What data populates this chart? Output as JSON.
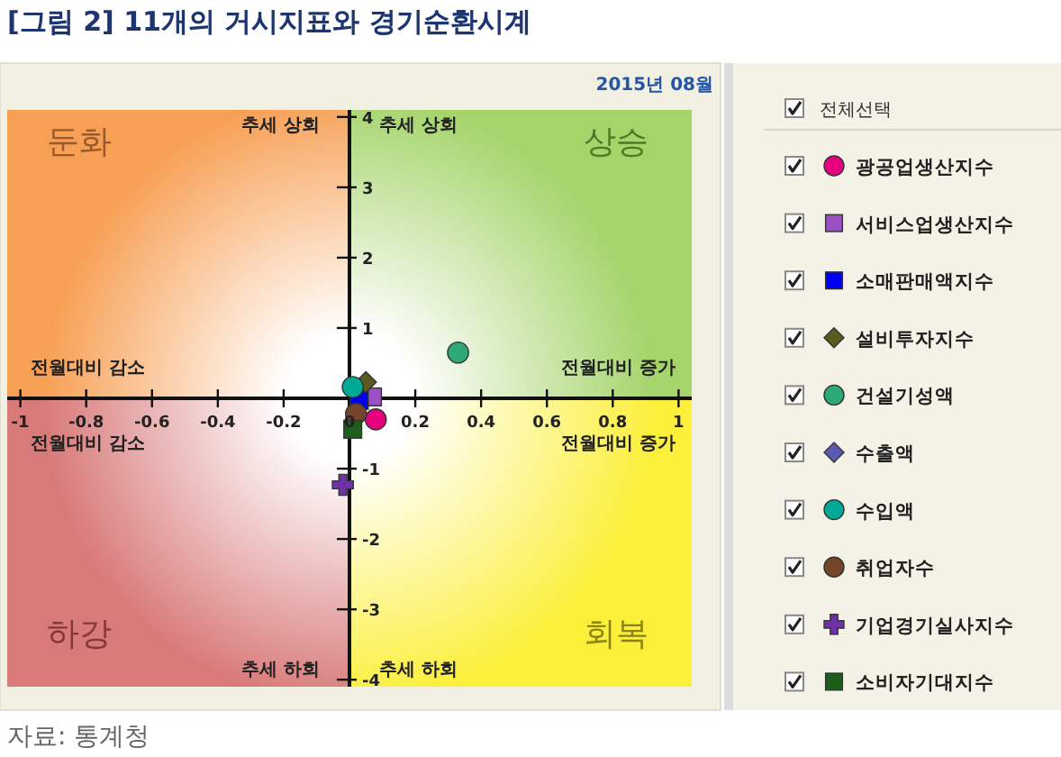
{
  "chart_data": {
    "type": "scatter",
    "title": "[그림 2] 11개의 거시지표와 경기순환시계",
    "xlim": [
      -1.04,
      1.04
    ],
    "xticks": [
      -1,
      -0.8,
      -0.6,
      -0.4,
      -0.2,
      0,
      0.2,
      0.4,
      0.6,
      0.8,
      1
    ],
    "ylim": [
      -4.1,
      4.1
    ],
    "yticks": [
      -4,
      -3,
      -2,
      -1,
      1,
      2,
      3,
      4
    ],
    "legend": "right",
    "series": [
      {
        "name": "광공업생산지수",
        "color": "#e6007e",
        "marker": "circle",
        "x": [
          0.08
        ],
        "values": [
          -0.3
        ]
      },
      {
        "name": "서비스업생산지수",
        "color": "#9b4fc4",
        "marker": "square",
        "x": [
          0.07
        ],
        "values": [
          0.02
        ]
      },
      {
        "name": "소매판매액지수",
        "color": "#0000f0",
        "marker": "square",
        "x": [
          0.03
        ],
        "values": [
          -0.03
        ]
      },
      {
        "name": "설비투자지수",
        "color": "#5b5b1f",
        "marker": "diamond",
        "x": [
          0.05
        ],
        "values": [
          0.23
        ]
      },
      {
        "name": "건설기성액",
        "color": "#2fa877",
        "marker": "circle",
        "x": [
          0.33
        ],
        "values": [
          0.65
        ]
      },
      {
        "name": "수출액",
        "color": "#5a5ab4",
        "marker": "diamond",
        "x": [
          null
        ],
        "values": [
          null
        ]
      },
      {
        "name": "수입액",
        "color": "#00a896",
        "marker": "circle",
        "x": [
          0.01
        ],
        "values": [
          0.16
        ]
      },
      {
        "name": "취업자수",
        "color": "#74452a",
        "marker": "circle",
        "x": [
          0.02
        ],
        "values": [
          -0.22
        ]
      },
      {
        "name": "기업경기실사지수",
        "color": "#7030a8",
        "marker": "cross",
        "x": [
          -0.02
        ],
        "values": [
          -1.23
        ]
      },
      {
        "name": "소비자기대지수",
        "color": "#1d5e1d",
        "marker": "square",
        "x": [
          0.01
        ],
        "values": [
          -0.44
        ]
      }
    ],
    "annotations": [
      "2015년 08월",
      "둔화",
      "상승",
      "하강",
      "회복",
      "추세 상회",
      "추세 상회",
      "추세 하회",
      "추세 하회",
      "전월대비 감소",
      "전월대비 감소",
      "전월대비 증가",
      "전월대비 증가",
      "전체선택",
      "자료: 통계청"
    ]
  }
}
